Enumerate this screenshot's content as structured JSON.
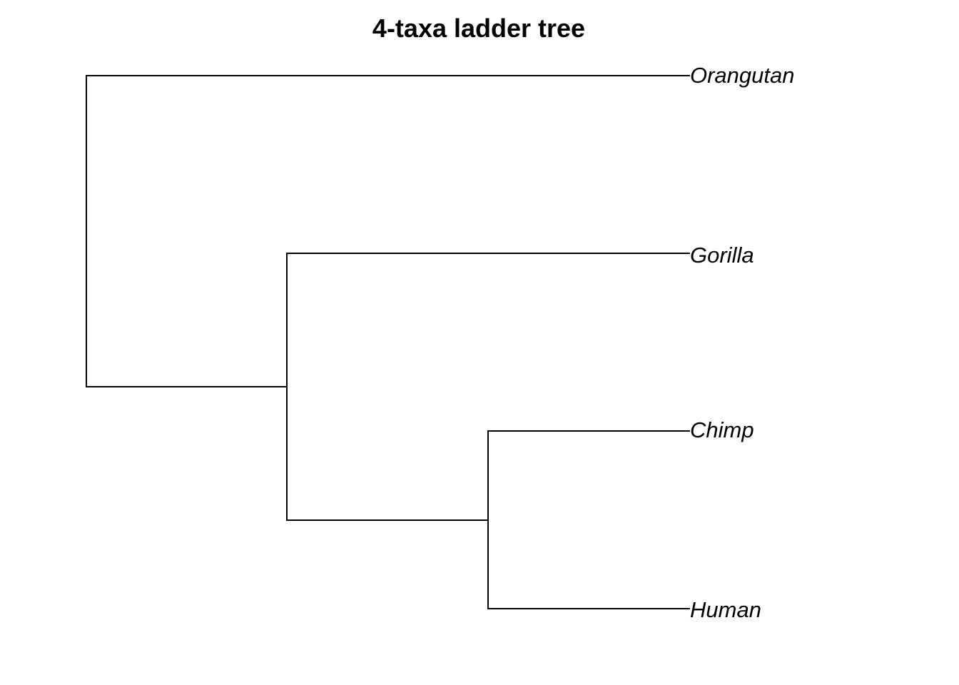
{
  "title": "4-taxa ladder tree",
  "tips": [
    {
      "id": "orangutan",
      "label": "Orangutan"
    },
    {
      "id": "gorilla",
      "label": "Gorilla"
    },
    {
      "id": "chimp",
      "label": "Chimp"
    },
    {
      "id": "human",
      "label": "Human"
    }
  ],
  "topology": "(Orangutan,(Gorilla,(Chimp,Human)))",
  "colors": {
    "branch": "#000000",
    "text": "#000000",
    "background": "#ffffff"
  }
}
